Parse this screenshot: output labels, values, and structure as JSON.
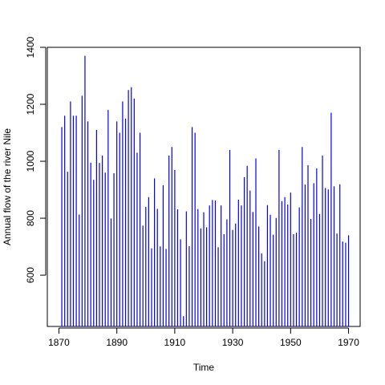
{
  "chart_data": {
    "type": "bar",
    "style": "vertical spikes (type='h') from baseline",
    "xlabel": "Time",
    "ylabel": "Annual flow of the river Nile",
    "xlim": [
      1866,
      1974
    ],
    "ylim": [
      420,
      1400
    ],
    "baseline": 420,
    "xticks": [
      1870,
      1890,
      1910,
      1930,
      1950,
      1970
    ],
    "yticks": [
      600,
      800,
      1000,
      1200,
      1400
    ],
    "grid": false,
    "legend": "none",
    "series_color": "#0000ff",
    "x": [
      1871,
      1872,
      1873,
      1874,
      1875,
      1876,
      1877,
      1878,
      1879,
      1880,
      1881,
      1882,
      1883,
      1884,
      1885,
      1886,
      1887,
      1888,
      1889,
      1890,
      1891,
      1892,
      1893,
      1894,
      1895,
      1896,
      1897,
      1898,
      1899,
      1900,
      1901,
      1902,
      1903,
      1904,
      1905,
      1906,
      1907,
      1908,
      1909,
      1910,
      1911,
      1912,
      1913,
      1914,
      1915,
      1916,
      1917,
      1918,
      1919,
      1920,
      1921,
      1922,
      1923,
      1924,
      1925,
      1926,
      1927,
      1928,
      1929,
      1930,
      1931,
      1932,
      1933,
      1934,
      1935,
      1936,
      1937,
      1938,
      1939,
      1940,
      1941,
      1942,
      1943,
      1944,
      1945,
      1946,
      1947,
      1948,
      1949,
      1950,
      1951,
      1952,
      1953,
      1954,
      1955,
      1956,
      1957,
      1958,
      1959,
      1960,
      1961,
      1962,
      1963,
      1964,
      1965,
      1966,
      1967,
      1968,
      1969,
      1970
    ],
    "values": [
      1120,
      1160,
      963,
      1210,
      1160,
      1160,
      813,
      1230,
      1370,
      1140,
      995,
      935,
      1110,
      994,
      1020,
      960,
      1180,
      799,
      958,
      1140,
      1100,
      1210,
      1150,
      1250,
      1260,
      1220,
      1030,
      1100,
      774,
      840,
      874,
      694,
      940,
      833,
      701,
      916,
      692,
      1020,
      1050,
      969,
      831,
      726,
      456,
      824,
      702,
      1120,
      1100,
      832,
      764,
      821,
      768,
      845,
      864,
      862,
      698,
      845,
      744,
      796,
      1040,
      759,
      781,
      865,
      845,
      944,
      984,
      897,
      822,
      1010,
      771,
      676,
      649,
      846,
      812,
      742,
      801,
      1040,
      860,
      874,
      848,
      890,
      744,
      749,
      838,
      1050,
      918,
      986,
      797,
      923,
      975,
      815,
      1020,
      906,
      901,
      1170,
      912,
      746,
      919,
      718,
      714,
      740
    ]
  }
}
